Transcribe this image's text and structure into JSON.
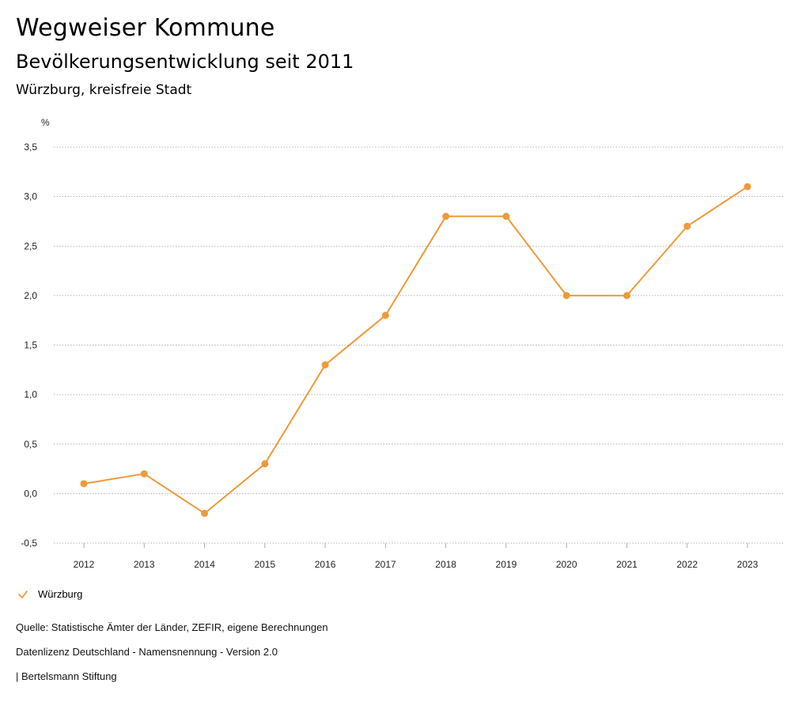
{
  "header": {
    "title": "Wegweiser Kommune",
    "subtitle": "Bevölkerungsentwicklung seit 2011",
    "region": "Würzburg, kreisfreie Stadt"
  },
  "chart_data": {
    "type": "line",
    "ylabel": "%",
    "ylim": [
      -0.5,
      3.5
    ],
    "yticks": [
      "-0,5",
      "0,0",
      "0,5",
      "1,0",
      "1,5",
      "2,0",
      "2,5",
      "3,0",
      "3,5"
    ],
    "categories": [
      "2012",
      "2013",
      "2014",
      "2015",
      "2016",
      "2017",
      "2018",
      "2019",
      "2020",
      "2021",
      "2022",
      "2023"
    ],
    "series": [
      {
        "name": "Würzburg",
        "color": "#EE9A3A",
        "values": [
          0.1,
          0.2,
          -0.2,
          0.3,
          1.3,
          1.8,
          2.8,
          2.8,
          2.0,
          2.0,
          2.7,
          3.1
        ]
      }
    ],
    "grid": true,
    "legend": "bottom-left"
  },
  "legend": {
    "label": "Würzburg",
    "icon": "check-icon"
  },
  "footer": {
    "source": "Quelle: Statistische Ämter der Länder, ZEFIR, eigene Berechnungen",
    "license": "Datenlizenz Deutschland - Namensnennung - Version 2.0",
    "publisher": "| Bertelsmann Stiftung"
  }
}
